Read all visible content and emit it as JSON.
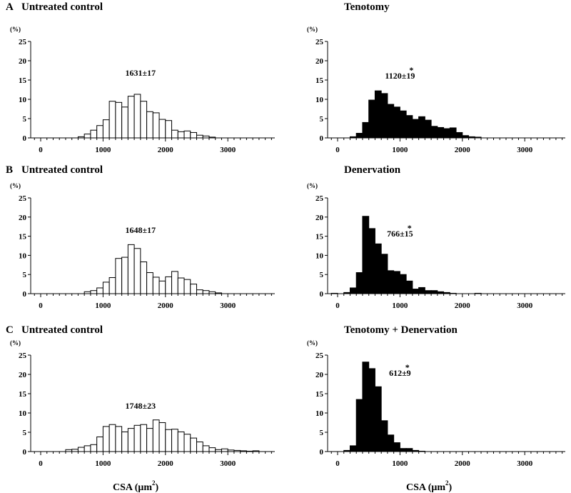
{
  "figure": {
    "xlabel": "CSA (μm²)",
    "xlabel_main": "CSA (",
    "xlabel_mu": "μm",
    "xlabel_sup": "2",
    "xlabel_close": ")"
  },
  "chart_data": [
    {
      "type": "bar",
      "letter": "A",
      "title": "Untreated control",
      "style": "open",
      "unit_label": "(%)",
      "annotation": "1631±17",
      "significant": false,
      "ylim": [
        0,
        25
      ],
      "yticks": [
        0,
        5,
        10,
        15,
        20,
        25
      ],
      "xlim": [
        -100,
        3750
      ],
      "xticks": [
        0,
        1000,
        2000,
        3000
      ],
      "bin_width": 100,
      "bin_start": 600,
      "values": [
        0.3,
        1,
        2,
        3.2,
        4.7,
        9.5,
        9.2,
        8,
        10.8,
        11.3,
        9.5,
        6.8,
        6.5,
        4.8,
        4.5,
        2,
        1.6,
        1.8,
        1.4,
        0.7,
        0.5,
        0.2
      ]
    },
    {
      "type": "bar",
      "letter": "",
      "title": "Tenotomy",
      "style": "filled",
      "unit_label": "(%)",
      "annotation": "1120±19",
      "significant": true,
      "ylim": [
        0,
        25
      ],
      "yticks": [
        0,
        5,
        10,
        15,
        20,
        25
      ],
      "xlim": [
        -100,
        3750
      ],
      "xticks": [
        0,
        1000,
        2000,
        3000
      ],
      "bin_width": 100,
      "bin_start": 200,
      "values": [
        0.3,
        1.2,
        4,
        9.8,
        12.2,
        11.5,
        8.7,
        8,
        7,
        5.8,
        4.8,
        5.5,
        4.6,
        3,
        2.7,
        2.4,
        2.6,
        1.4,
        0.6,
        0.3,
        0.2
      ]
    },
    {
      "type": "bar",
      "letter": "B",
      "title": "Untreated control",
      "style": "open",
      "unit_label": "(%)",
      "annotation": "1648±17",
      "significant": false,
      "ylim": [
        0,
        25
      ],
      "yticks": [
        0,
        5,
        10,
        15,
        20,
        25
      ],
      "xlim": [
        -100,
        3750
      ],
      "xticks": [
        0,
        1000,
        2000,
        3000
      ],
      "bin_width": 100,
      "bin_start": 700,
      "values": [
        0.5,
        0.8,
        1.5,
        3,
        4.2,
        9.2,
        9.5,
        12.8,
        11.8,
        8.3,
        5.5,
        4.3,
        3.3,
        4.4,
        5.8,
        4.1,
        3.7,
        2.5,
        1,
        0.8,
        0.5,
        0.2
      ]
    },
    {
      "type": "bar",
      "letter": "",
      "title": "Denervation",
      "style": "filled",
      "unit_label": "(%)",
      "annotation": "766±15",
      "significant": true,
      "ylim": [
        0,
        25
      ],
      "yticks": [
        0,
        5,
        10,
        15,
        20,
        25
      ],
      "xlim": [
        -100,
        3750
      ],
      "xticks": [
        0,
        1000,
        2000,
        3000
      ],
      "bin_width": 100,
      "bin_start": -100,
      "values": [
        0.1,
        0,
        0.3,
        1.5,
        5.5,
        20.2,
        17,
        13,
        10.3,
        6,
        5.8,
        5,
        3.3,
        1.2,
        1.6,
        0.8,
        0.8,
        0.5,
        0.3,
        0.1,
        0,
        0,
        0,
        0.1
      ]
    },
    {
      "type": "bar",
      "letter": "C",
      "title": "Untreated control",
      "style": "open",
      "unit_label": "(%)",
      "annotation": "1748±23",
      "significant": false,
      "ylim": [
        0,
        25
      ],
      "yticks": [
        0,
        5,
        10,
        15,
        20,
        25
      ],
      "xlim": [
        -100,
        3750
      ],
      "xticks": [
        0,
        1000,
        2000,
        3000
      ],
      "bin_width": 100,
      "bin_start": 400,
      "values": [
        0.5,
        0.6,
        1.1,
        1.5,
        1.8,
        3.8,
        6.5,
        7,
        6.5,
        5.1,
        6,
        6.8,
        7,
        6,
        8.2,
        7.5,
        5.7,
        5.8,
        5.1,
        4.5,
        3.5,
        2.5,
        1.5,
        1,
        0.5,
        0.7,
        0.4,
        0.3,
        0.2,
        0.1,
        0.2
      ]
    },
    {
      "type": "bar",
      "letter": "",
      "title": "Tenotomy + Denervation",
      "style": "filled",
      "unit_label": "(%)",
      "annotation": "612±9",
      "significant": true,
      "ylim": [
        0,
        25
      ],
      "yticks": [
        0,
        5,
        10,
        15,
        20,
        25
      ],
      "xlim": [
        -100,
        3750
      ],
      "xticks": [
        0,
        1000,
        2000,
        3000
      ],
      "bin_width": 100,
      "bin_start": 100,
      "values": [
        0.3,
        1.5,
        13.5,
        23.2,
        21.5,
        16.8,
        8,
        4.3,
        2.3,
        0.8,
        0.8,
        0.3,
        0.1
      ]
    }
  ]
}
